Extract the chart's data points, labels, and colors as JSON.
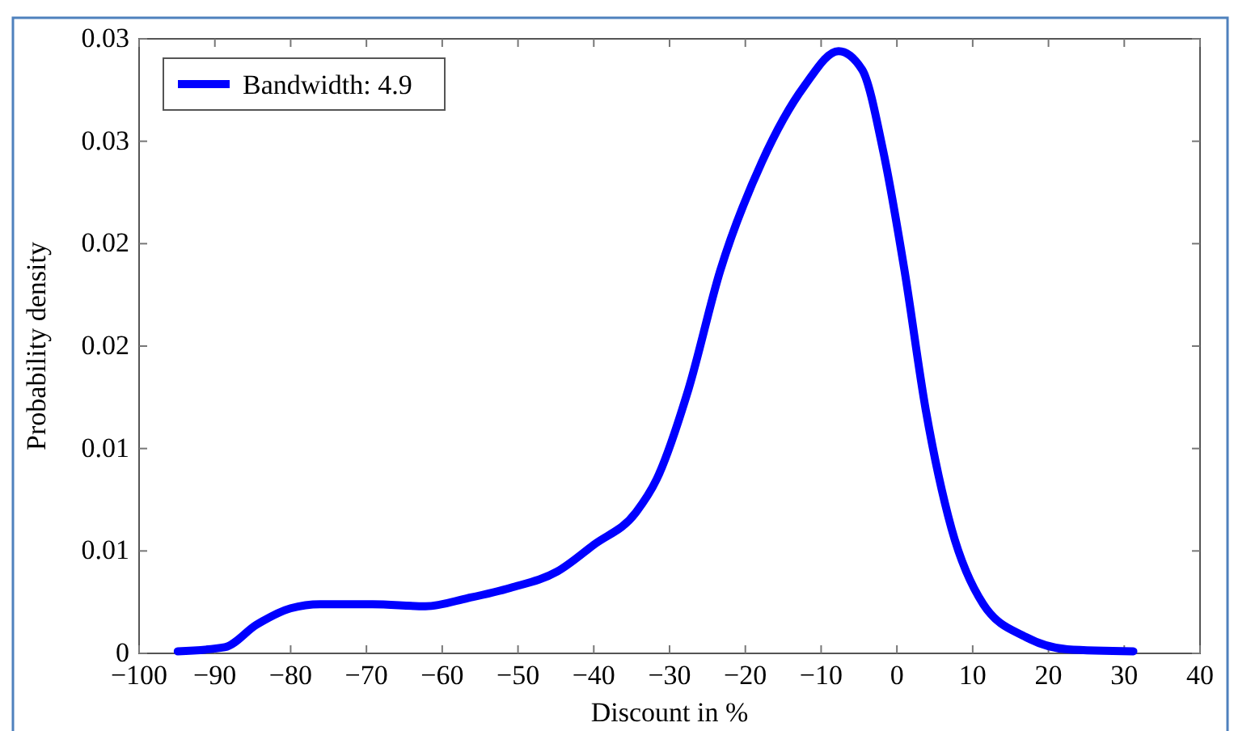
{
  "chart_data": {
    "type": "line",
    "xlabel": "Discount in %",
    "ylabel": "Probability density",
    "xlim": [
      -100,
      40
    ],
    "xticks": [
      -100,
      -90,
      -80,
      -70,
      -60,
      -50,
      -40,
      -30,
      -20,
      -10,
      0,
      10,
      20,
      30,
      40
    ],
    "ylim": [
      0,
      0.03
    ],
    "yticks": [
      {
        "value": 0,
        "label": "0"
      },
      {
        "value": 0.005,
        "label": "0.01"
      },
      {
        "value": 0.01,
        "label": "0.01"
      },
      {
        "value": 0.015,
        "label": "0.02"
      },
      {
        "value": 0.02,
        "label": "0.02"
      },
      {
        "value": 0.025,
        "label": "0.03"
      },
      {
        "value": 0.03,
        "label": "0.03"
      }
    ],
    "grid": false,
    "legend": "top left",
    "marker": "none",
    "line_style": "solid",
    "series": [
      {
        "name": "Bandwidth: 4.9",
        "color": "#0000ff",
        "x": [
          -94.9,
          -88.7,
          -84.5,
          -80,
          -76.1,
          -69.2,
          -62.2,
          -56.6,
          -51,
          -44.8,
          -40,
          -34.4,
          -31.7,
          -27.5,
          -23.3,
          -17.8,
          -12.2,
          -7.7,
          -4.6,
          -1.8,
          1.0,
          3.8,
          7.2,
          11.4,
          17.0,
          22.5,
          31.2
        ],
        "values": [
          0.0001,
          0.0003,
          0.0014,
          0.0022,
          0.0024,
          0.0024,
          0.0023,
          0.0027,
          0.0032,
          0.004,
          0.0053,
          0.0069,
          0.0085,
          0.0129,
          0.0187,
          0.024,
          0.0277,
          0.0294,
          0.0285,
          0.0245,
          0.0187,
          0.0119,
          0.0061,
          0.0024,
          0.0008,
          0.0002,
          0.0001
        ]
      }
    ]
  }
}
